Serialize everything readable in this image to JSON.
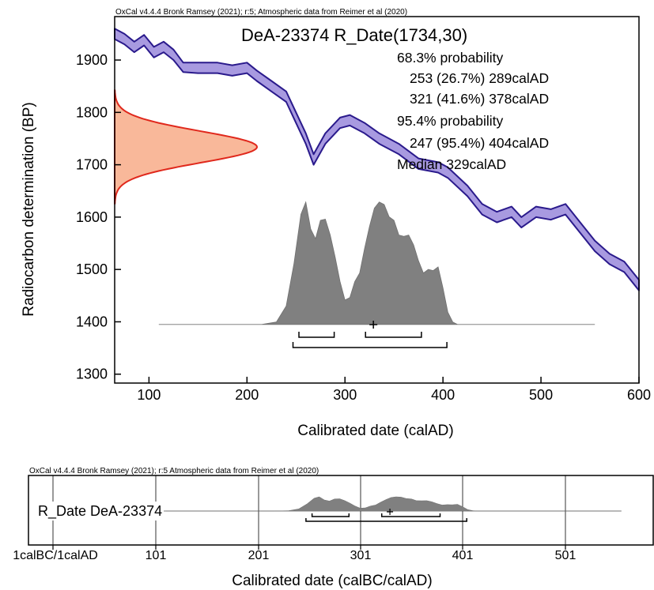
{
  "chart_data": [
    {
      "type": "area",
      "credit": "OxCal v4.4.4 Bronk Ramsey (2021); r:5; Atmospheric data from Reimer et al (2020)",
      "title": "DeA-23374 R_Date(1734,30)",
      "xlabel": "Calibrated date (calAD)",
      "ylabel": "Radiocarbon determination (BP)",
      "xlim": [
        65,
        600
      ],
      "ylim": [
        1283,
        1983
      ],
      "xticks": [
        100,
        200,
        300,
        400,
        500,
        600
      ],
      "yticks": [
        1300,
        1400,
        1500,
        1600,
        1700,
        1800,
        1900
      ],
      "radiocarbon_date": {
        "mean": 1734,
        "sigma": 30
      },
      "probability_text": {
        "p68_label": "68.3% probability",
        "p68_range1": "253 (26.7%) 289calAD",
        "p68_range2": "321 (41.6%) 378calAD",
        "p95_label": "95.4% probability",
        "p95_range1": "247 (95.4%) 404calAD",
        "median": "Median 329calAD"
      },
      "calibration_curve": {
        "x": [
          65,
          75,
          85,
          95,
          105,
          115,
          125,
          135,
          150,
          170,
          185,
          200,
          210,
          225,
          240,
          250,
          260,
          268,
          280,
          295,
          305,
          320,
          335,
          355,
          375,
          395,
          405,
          425,
          440,
          455,
          470,
          480,
          495,
          510,
          525,
          540,
          555,
          570,
          585,
          600
        ],
        "upper": [
          1960,
          1950,
          1935,
          1948,
          1925,
          1935,
          1920,
          1895,
          1895,
          1895,
          1890,
          1895,
          1880,
          1860,
          1840,
          1800,
          1760,
          1720,
          1760,
          1790,
          1795,
          1780,
          1760,
          1740,
          1712,
          1705,
          1695,
          1660,
          1625,
          1610,
          1620,
          1600,
          1620,
          1615,
          1625,
          1590,
          1555,
          1530,
          1515,
          1480
        ],
        "lower": [
          1940,
          1930,
          1915,
          1928,
          1905,
          1915,
          1900,
          1877,
          1875,
          1875,
          1870,
          1875,
          1860,
          1840,
          1820,
          1780,
          1740,
          1700,
          1740,
          1770,
          1775,
          1760,
          1740,
          1720,
          1692,
          1685,
          1675,
          1640,
          1605,
          1590,
          1600,
          1580,
          1600,
          1595,
          1605,
          1570,
          1535,
          1510,
          1495,
          1460
        ],
        "fill": "#a89ae0",
        "stroke": "#2a1a8c"
      },
      "posterior": {
        "x": [
          110,
          215,
          230,
          240,
          248,
          255,
          260,
          265,
          270,
          275,
          280,
          285,
          290,
          295,
          300,
          305,
          310,
          315,
          320,
          325,
          330,
          335,
          340,
          345,
          350,
          355,
          360,
          365,
          370,
          375,
          380,
          385,
          390,
          395,
          400,
          405,
          410,
          415,
          420,
          425,
          555
        ],
        "density": [
          0,
          0,
          0.02,
          0.15,
          0.5,
          0.9,
          1.0,
          0.78,
          0.7,
          0.85,
          0.86,
          0.73,
          0.55,
          0.35,
          0.2,
          0.22,
          0.35,
          0.42,
          0.62,
          0.8,
          0.95,
          1.0,
          0.98,
          0.88,
          0.85,
          0.73,
          0.72,
          0.73,
          0.65,
          0.52,
          0.42,
          0.45,
          0.44,
          0.47,
          0.3,
          0.1,
          0.02,
          0,
          0,
          0,
          0
        ],
        "fill": "#808080"
      },
      "measurement_curve_color": "#e0281c",
      "measurement_fill_color": "#f9b89a",
      "ranges_68": [
        [
          253,
          289
        ],
        [
          321,
          378
        ]
      ],
      "ranges_95": [
        [
          247,
          404
        ]
      ],
      "mean_marker_x": 329
    },
    {
      "type": "area",
      "credit": "OxCal v4.4.4 Bronk Ramsey (2021); r:5 Atmospheric data from Reimer et al (2020)",
      "label": "R_Date DeA-23374",
      "xlabel": "Calibrated date (calBC/calAD)",
      "xticks": [
        "1calBC/1calAD",
        "101",
        "201",
        "301",
        "401",
        "501"
      ],
      "xlim": [
        -50,
        600
      ]
    }
  ]
}
